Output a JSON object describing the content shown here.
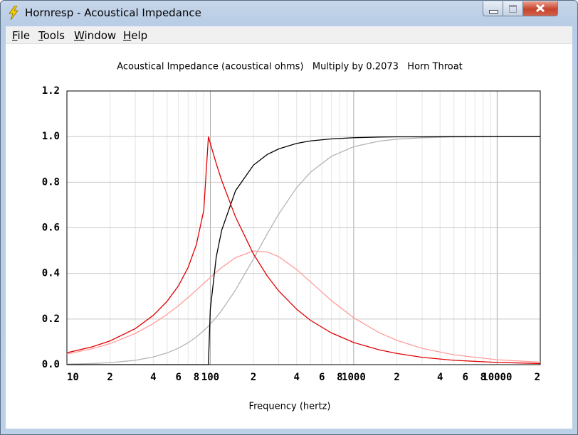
{
  "window": {
    "title": "Hornresp - Acoustical Impedance"
  },
  "menu": [
    "File",
    "Tools",
    "Window",
    "Help"
  ],
  "chart_data": {
    "type": "line",
    "title": "Acoustical Impedance (acoustical ohms)   Multiply by 0.2073   Horn Throat",
    "x_label": "Frequency (hertz)",
    "log_x": true,
    "grid": true,
    "x": [
      10,
      15,
      20,
      30,
      40,
      50,
      60,
      70,
      80,
      90,
      97,
      100,
      110,
      120,
      150,
      200,
      250,
      300,
      400,
      500,
      700,
      1000,
      1500,
      2000,
      3000,
      5000,
      10000,
      20000
    ],
    "xlim": [
      10,
      20000
    ],
    "xticks": [
      10,
      {
        "value": 20,
        "label": "2"
      },
      {
        "value": 40,
        "label": "4"
      },
      {
        "value": 60,
        "label": "6"
      },
      {
        "value": 80,
        "label": "8"
      },
      100,
      {
        "value": 200,
        "label": "2"
      },
      {
        "value": 400,
        "label": "4"
      },
      {
        "value": 600,
        "label": "6"
      },
      {
        "value": 800,
        "label": "8"
      },
      1000,
      {
        "value": 2000,
        "label": "2"
      },
      {
        "value": 4000,
        "label": "4"
      },
      {
        "value": 6000,
        "label": "6"
      },
      {
        "value": 8000,
        "label": "8"
      },
      10000,
      {
        "value": 20000,
        "label": "2"
      }
    ],
    "x_minor_ticks": [
      30,
      50,
      70,
      90,
      300,
      500,
      700,
      900,
      3000,
      5000,
      7000,
      9000
    ],
    "ylim": [
      0,
      1.2
    ],
    "yticks": [
      {
        "value": 0,
        "label": "0.0"
      },
      {
        "value": 0.2,
        "label": "0.2"
      },
      {
        "value": 0.4,
        "label": "0.4"
      },
      {
        "value": 0.6,
        "label": "0.6"
      },
      {
        "value": 0.8,
        "label": "0.8"
      },
      {
        "value": 1,
        "label": "1.0"
      },
      {
        "value": 1.2,
        "label": "1.2"
      }
    ],
    "series": [
      {
        "color": "#b4b4b4",
        "values": [
          0.0022,
          0.0048,
          0.0086,
          0.0191,
          0.0335,
          0.0513,
          0.0722,
          0.0959,
          0.1216,
          0.1491,
          0.1691,
          0.1779,
          0.2075,
          0.2375,
          0.3274,
          0.4639,
          0.5748,
          0.6606,
          0.7759,
          0.844,
          0.9138,
          0.9558,
          0.9799,
          0.9886,
          0.9949,
          0.9982,
          0.9995,
          0.9999
        ]
      },
      {
        "color": "#ff9c9c",
        "values": [
          0.0464,
          0.0695,
          0.0922,
          0.1368,
          0.1798,
          0.2206,
          0.2588,
          0.2944,
          0.3268,
          0.3562,
          0.3749,
          0.3824,
          0.4055,
          0.4256,
          0.4692,
          0.4987,
          0.4943,
          0.4734,
          0.417,
          0.3629,
          0.2807,
          0.2055,
          0.1404,
          0.1063,
          0.0713,
          0.0429,
          0.0215,
          0.0107
        ]
      },
      {
        "color": "#000000",
        "values": [
          0,
          0,
          0,
          0,
          0,
          0,
          0,
          0,
          0,
          0,
          0,
          0.243,
          0.472,
          0.589,
          0.763,
          0.875,
          0.922,
          0.946,
          0.97,
          0.981,
          0.99,
          0.995,
          0.998,
          0.999,
          0.999,
          1,
          1,
          1
        ]
      },
      {
        "color": "#e00000",
        "values": [
          0.052,
          0.078,
          0.104,
          0.158,
          0.216,
          0.278,
          0.346,
          0.426,
          0.527,
          0.676,
          1,
          0.97,
          0.882,
          0.808,
          0.647,
          0.485,
          0.388,
          0.323,
          0.243,
          0.194,
          0.139,
          0.097,
          0.065,
          0.049,
          0.032,
          0.019,
          0.0097,
          0.0049
        ]
      }
    ]
  }
}
